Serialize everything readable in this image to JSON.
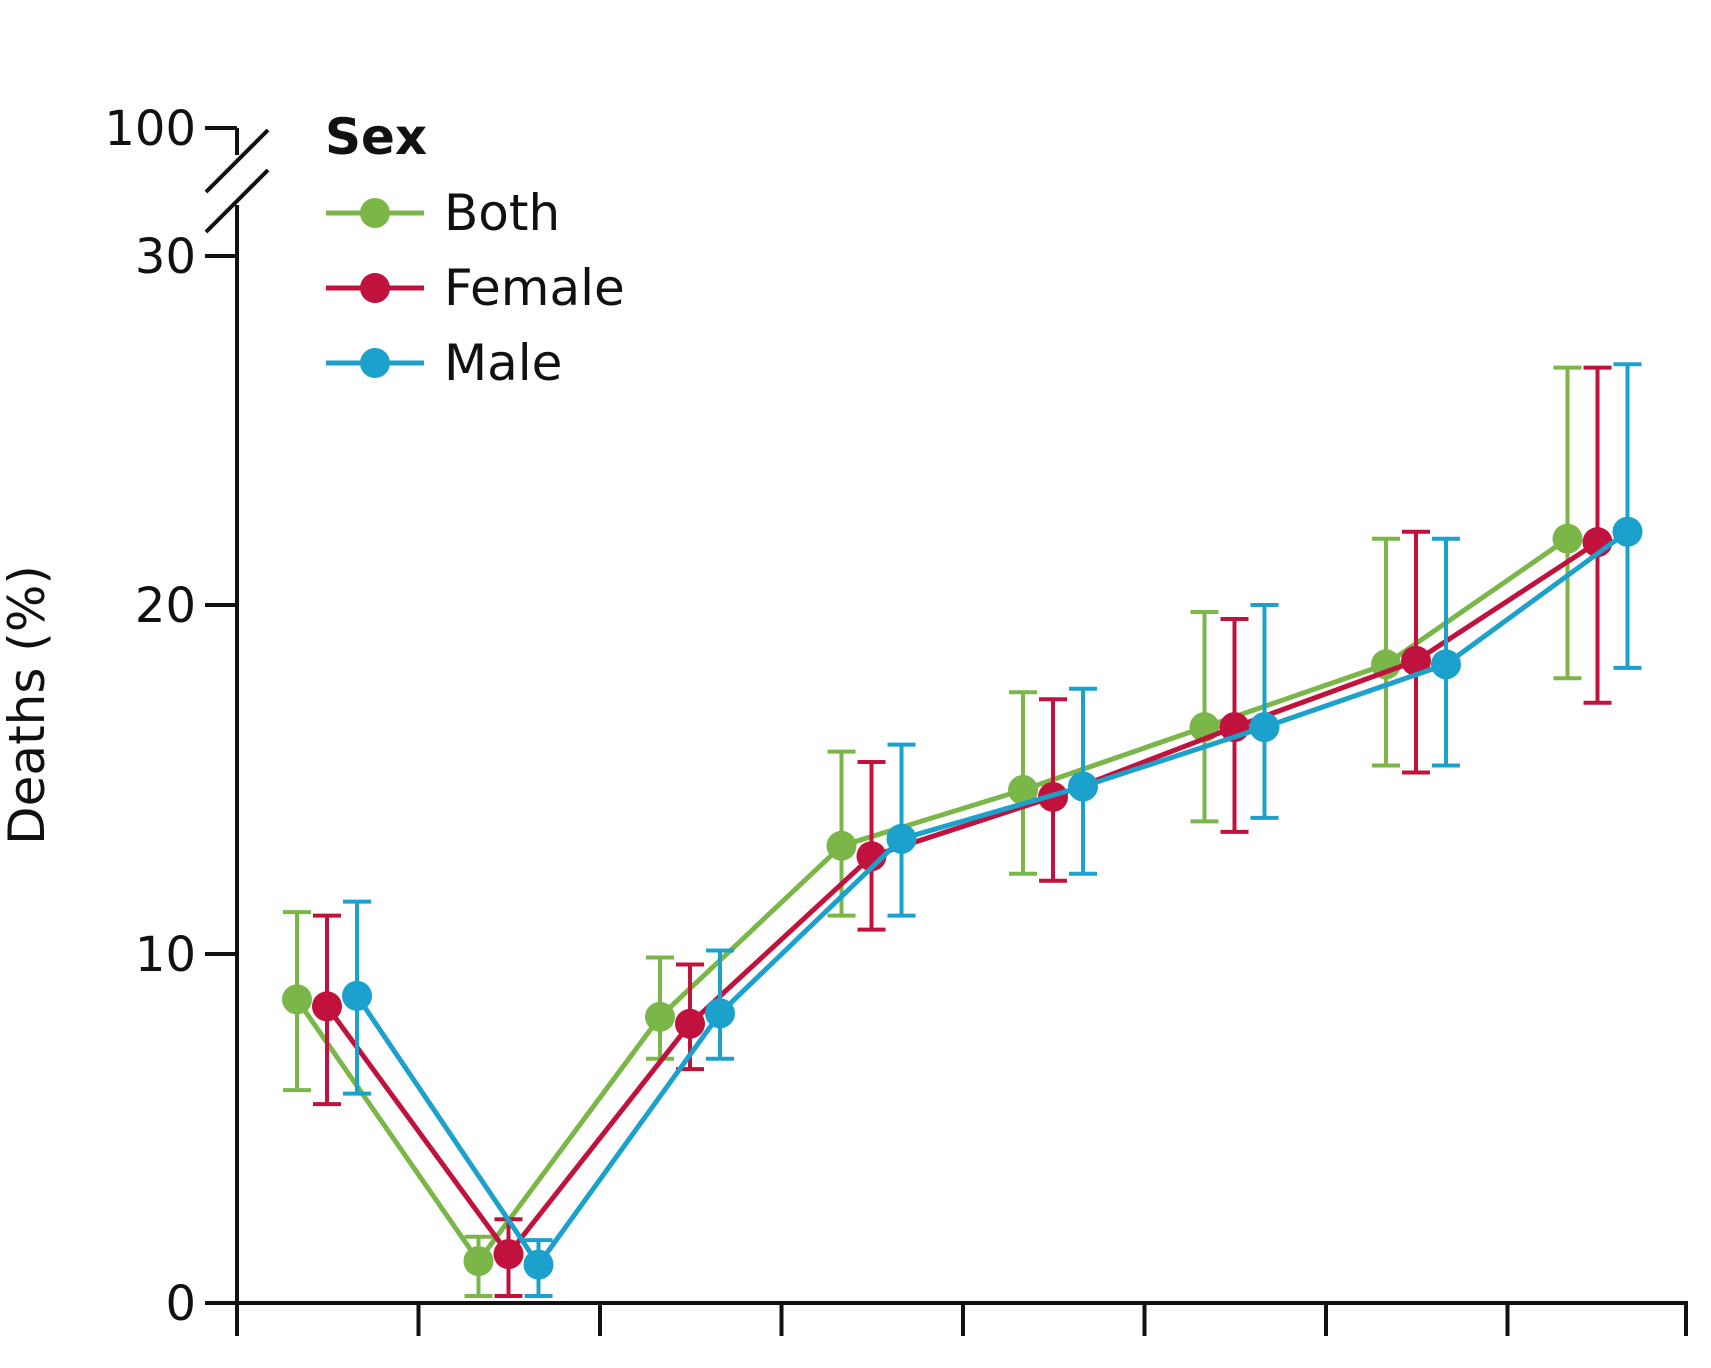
{
  "chart_data": {
    "type": "line",
    "title": "",
    "xlabel": "",
    "ylabel": "Deaths (%)",
    "ylim": [
      0,
      30
    ],
    "axis_break": {
      "upper_tick": 100
    },
    "y_ticks": [
      0,
      10,
      20,
      30
    ],
    "y_tick_labels": [
      "0",
      "10",
      "20",
      "30",
      "100"
    ],
    "x_positions": 8,
    "legend": {
      "title": "Sex",
      "placement": "top-left"
    },
    "grid": false,
    "series": [
      {
        "name": "Both",
        "color": "#7ab648",
        "values": [
          8.7,
          1.2,
          8.2,
          13.1,
          14.7,
          16.5,
          18.3,
          21.9
        ],
        "lower": [
          6.1,
          0.2,
          7.0,
          11.1,
          12.3,
          13.8,
          15.4,
          17.9
        ],
        "upper": [
          11.2,
          1.9,
          9.9,
          15.8,
          17.5,
          19.8,
          21.9,
          26.8
        ]
      },
      {
        "name": "Female",
        "color": "#c0123c",
        "values": [
          8.5,
          1.4,
          8.0,
          12.8,
          14.5,
          16.5,
          18.4,
          21.8
        ],
        "lower": [
          5.7,
          0.2,
          6.7,
          10.7,
          12.1,
          13.5,
          15.2,
          17.2
        ],
        "upper": [
          11.1,
          2.4,
          9.7,
          15.5,
          17.3,
          19.6,
          22.1,
          26.8
        ]
      },
      {
        "name": "Male",
        "color": "#1ba1cc",
        "values": [
          8.8,
          1.1,
          8.3,
          13.3,
          14.8,
          16.5,
          18.3,
          22.1
        ],
        "lower": [
          6.0,
          0.2,
          7.0,
          11.1,
          12.3,
          13.9,
          15.4,
          18.2
        ],
        "upper": [
          11.5,
          1.8,
          10.1,
          16.0,
          17.6,
          20.0,
          21.9,
          26.9
        ]
      }
    ]
  }
}
